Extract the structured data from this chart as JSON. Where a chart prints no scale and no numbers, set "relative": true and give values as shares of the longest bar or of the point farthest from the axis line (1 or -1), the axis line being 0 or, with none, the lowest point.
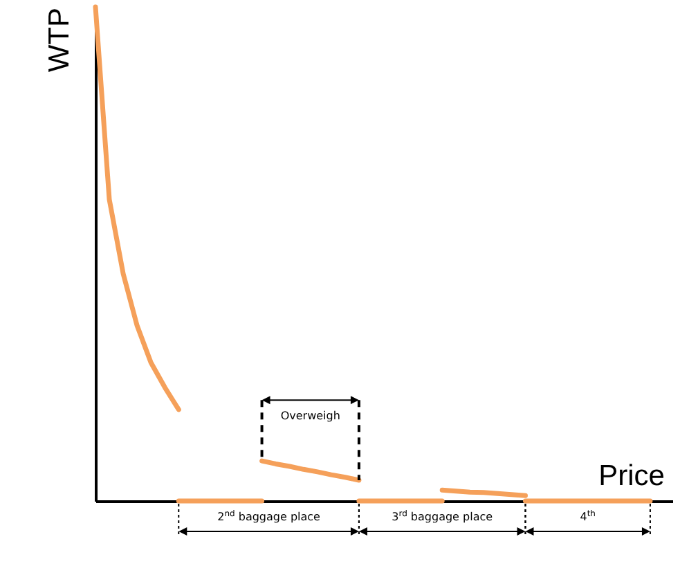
{
  "chart_data": {
    "type": "line",
    "relative": true,
    "xlabel": "Price",
    "ylabel": "WTP",
    "marker": "none",
    "line_style": "solid",
    "categories": [
      null,
      null,
      null,
      null,
      null,
      null,
      null,
      null,
      null,
      null,
      null,
      null,
      null,
      null,
      null,
      null,
      null,
      null,
      null,
      null,
      null,
      null,
      null,
      null,
      null,
      null,
      null,
      null,
      null,
      null,
      null,
      null,
      null,
      null,
      null,
      null,
      null,
      null,
      null,
      null,
      null
    ],
    "series": [
      {
        "color": "#f5a05a",
        "values": [
          1,
          0.61,
          0.46,
          0.355,
          0.28,
          0.23,
          0.185,
          null,
          null,
          null,
          null,
          null,
          null,
          null,
          null,
          null,
          null,
          null,
          null,
          null,
          null,
          null,
          null,
          null,
          null,
          null,
          null,
          null,
          null,
          null,
          null,
          null,
          null,
          null,
          null,
          null,
          null,
          null,
          null,
          null,
          null
        ]
      },
      {
        "color": "#f5a05a",
        "values": [
          null,
          null,
          null,
          null,
          null,
          null,
          0,
          0,
          0,
          0,
          0,
          0,
          0,
          null,
          null,
          null,
          null,
          null,
          null,
          null,
          null,
          null,
          null,
          null,
          null,
          null,
          null,
          null,
          null,
          null,
          null,
          null,
          null,
          null,
          null,
          null,
          null,
          null,
          null,
          null,
          null
        ]
      },
      {
        "color": "#f5a05a",
        "values": [
          null,
          null,
          null,
          null,
          null,
          null,
          null,
          null,
          null,
          null,
          null,
          null,
          0.081,
          0.075,
          0.07,
          0.064,
          0.059,
          0.053,
          0.048,
          0.042,
          null,
          null,
          null,
          null,
          null,
          null,
          null,
          null,
          null,
          null,
          null,
          null,
          null,
          null,
          null,
          null,
          null,
          null,
          null,
          null,
          null
        ]
      },
      {
        "color": "#f5a05a",
        "values": [
          null,
          null,
          null,
          null,
          null,
          null,
          null,
          null,
          null,
          null,
          null,
          null,
          null,
          null,
          null,
          null,
          null,
          null,
          null,
          0,
          0,
          0,
          0,
          0,
          0,
          0,
          null,
          null,
          null,
          null,
          null,
          null,
          null,
          null,
          null,
          null,
          null,
          null,
          null,
          null,
          null
        ]
      },
      {
        "color": "#f5a05a",
        "values": [
          null,
          null,
          null,
          null,
          null,
          null,
          null,
          null,
          null,
          null,
          null,
          null,
          null,
          null,
          null,
          null,
          null,
          null,
          null,
          null,
          null,
          null,
          null,
          null,
          null,
          0.022,
          0.02,
          0.018,
          0.017,
          0.015,
          0.013,
          0.011,
          null,
          null,
          null,
          null,
          null,
          null,
          null,
          null,
          null
        ]
      },
      {
        "color": "#f5a05a",
        "values": [
          null,
          null,
          null,
          null,
          null,
          null,
          null,
          null,
          null,
          null,
          null,
          null,
          null,
          null,
          null,
          null,
          null,
          null,
          null,
          null,
          null,
          null,
          null,
          null,
          null,
          null,
          null,
          null,
          null,
          null,
          null,
          0,
          0,
          0,
          0,
          0,
          0,
          0,
          0,
          0,
          0
        ]
      }
    ],
    "annotations": [
      "2$^{nd}$ baggage place",
      "3$^{rd}$ baggage place",
      "4$^{th}$",
      "Overweigh"
    ]
  }
}
